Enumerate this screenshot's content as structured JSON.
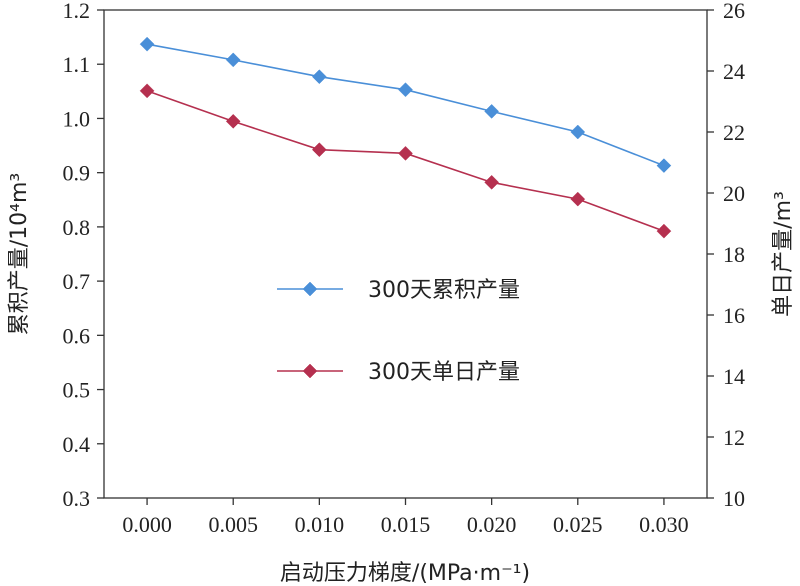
{
  "chart_data": {
    "type": "line",
    "x": [
      "0.000",
      "0.005",
      "0.010",
      "0.015",
      "0.020",
      "0.025",
      "0.030"
    ],
    "xlabel": "启动压力梯度/(MPa·m⁻¹)",
    "ylabel_left": "累积产量/10⁴m³",
    "ylabel_right": "单日产量/m³",
    "ylim_left": [
      0.3,
      1.2
    ],
    "ylim_right": [
      10,
      26
    ],
    "yticks_left": [
      "0.3",
      "0.4",
      "0.5",
      "0.6",
      "0.7",
      "0.8",
      "0.9",
      "1.0",
      "1.1",
      "1.2"
    ],
    "yticks_right": [
      "10",
      "12",
      "14",
      "16",
      "18",
      "20",
      "22",
      "24",
      "26"
    ],
    "grid": false,
    "legend_position": "center-right",
    "series": [
      {
        "name": "300天累积产量",
        "axis": "left",
        "color": "#4a8fd8",
        "marker": "diamond",
        "values": [
          1.137,
          1.108,
          1.077,
          1.053,
          1.013,
          0.975,
          0.913
        ]
      },
      {
        "name": "300天单日产量",
        "axis": "right",
        "color": "#b5304f",
        "marker": "diamond",
        "values": [
          23.35,
          22.35,
          21.42,
          21.3,
          20.35,
          19.8,
          18.75
        ]
      }
    ]
  }
}
